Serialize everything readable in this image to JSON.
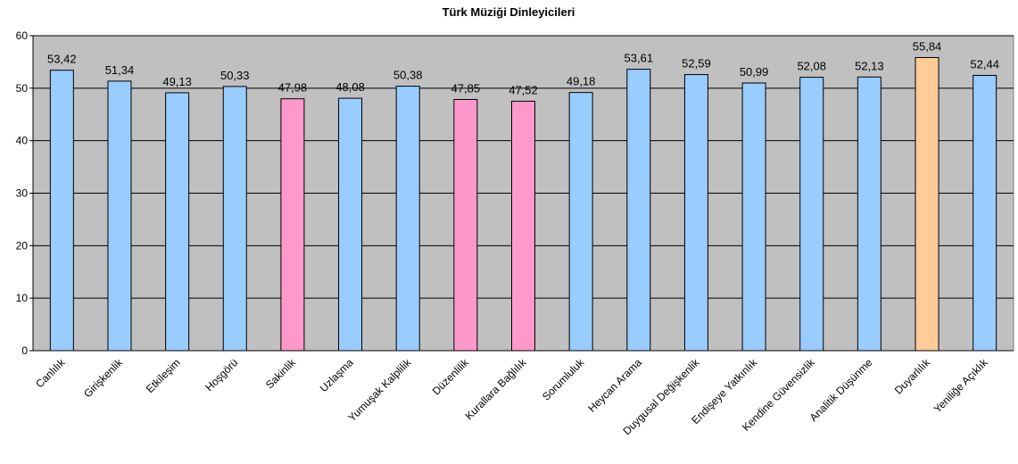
{
  "chart_data": {
    "type": "bar",
    "title": "Türk Müziği Dinleyicileri",
    "categories": [
      "Canlılık",
      "Girişkenlik",
      "Etkileşim",
      "Hoşgörü",
      "Sakinlik",
      "Uzlaşma",
      "Yumuşak Kalplilik",
      "Düzenlilik",
      "Kurallara Bağlılık",
      "Sorumluluk",
      "Heycan Arama",
      "Duygusal Değişkenlik",
      "Endişeye Yatkınlık",
      "Kendine Güvensizlik",
      "Analitik Düşünme",
      "Duyarlılık",
      "Yeniliğe Açıklık"
    ],
    "values": [
      53.42,
      51.34,
      49.13,
      50.33,
      47.98,
      48.08,
      50.38,
      47.85,
      47.52,
      49.18,
      53.61,
      52.59,
      50.99,
      52.08,
      52.13,
      55.84,
      52.44
    ],
    "value_labels": [
      "53,42",
      "51,34",
      "49,13",
      "50,33",
      "47,98",
      "48,08",
      "50,38",
      "47,85",
      "47,52",
      "49,18",
      "53,61",
      "52,59",
      "50,99",
      "52,08",
      "52,13",
      "55,84",
      "52,44"
    ],
    "colors": [
      "#99ccff",
      "#99ccff",
      "#99ccff",
      "#99ccff",
      "#ff99cc",
      "#99ccff",
      "#99ccff",
      "#ff99cc",
      "#ff99cc",
      "#99ccff",
      "#99ccff",
      "#99ccff",
      "#99ccff",
      "#99ccff",
      "#99ccff",
      "#ffcc99",
      "#99ccff"
    ],
    "ylim": [
      0,
      60
    ],
    "yticks": [
      0,
      10,
      20,
      30,
      40,
      50,
      60
    ],
    "grid": true
  }
}
